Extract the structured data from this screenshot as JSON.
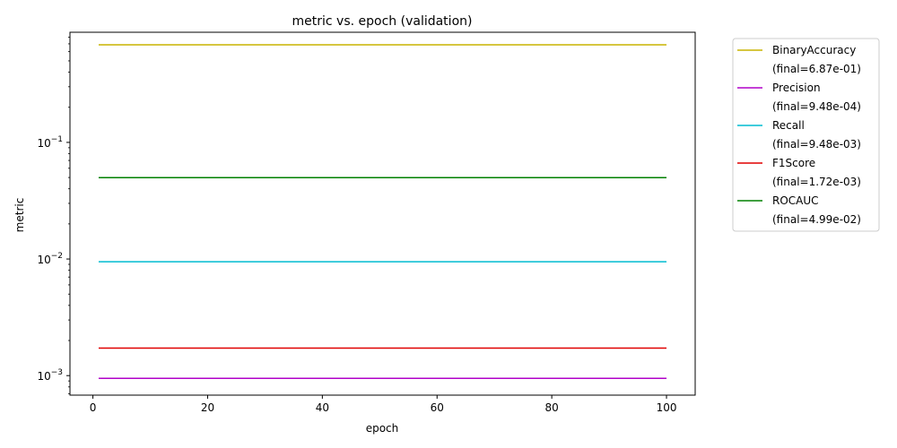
{
  "chart_data": {
    "type": "line",
    "title": "metric vs. epoch (validation)",
    "xlabel": "epoch",
    "ylabel": "metric",
    "xlim": [
      -4,
      105
    ],
    "ylim": [
      0.00068,
      0.88
    ],
    "yscale": "log",
    "grid": false,
    "legend_placement": "outside-top-right",
    "x_ticks": [
      0,
      20,
      40,
      60,
      80,
      100
    ],
    "y_ticks": [
      {
        "value": 0.001,
        "base": "10",
        "exp": "−3"
      },
      {
        "value": 0.01,
        "base": "10",
        "exp": "−2"
      },
      {
        "value": 0.1,
        "base": "10",
        "exp": "−1"
      }
    ],
    "x": [
      1,
      100
    ],
    "series": [
      {
        "name": "BinaryAccuracy",
        "final_label": "(final=6.87e-01)",
        "color": "#c8b400",
        "values": [
          0.687,
          0.687
        ]
      },
      {
        "name": "Precision",
        "final_label": "(final=9.48e-04)",
        "color": "#b000c8",
        "values": [
          0.000948,
          0.000948
        ]
      },
      {
        "name": "Recall",
        "final_label": "(final=9.48e-03)",
        "color": "#00bcd0",
        "values": [
          0.00948,
          0.00948
        ]
      },
      {
        "name": "F1Score",
        "final_label": "(final=1.72e-03)",
        "color": "#e00000",
        "values": [
          0.00172,
          0.00172
        ]
      },
      {
        "name": "ROCAUC",
        "final_label": "(final=4.99e-02)",
        "color": "#008000",
        "values": [
          0.0499,
          0.0499
        ]
      }
    ]
  }
}
